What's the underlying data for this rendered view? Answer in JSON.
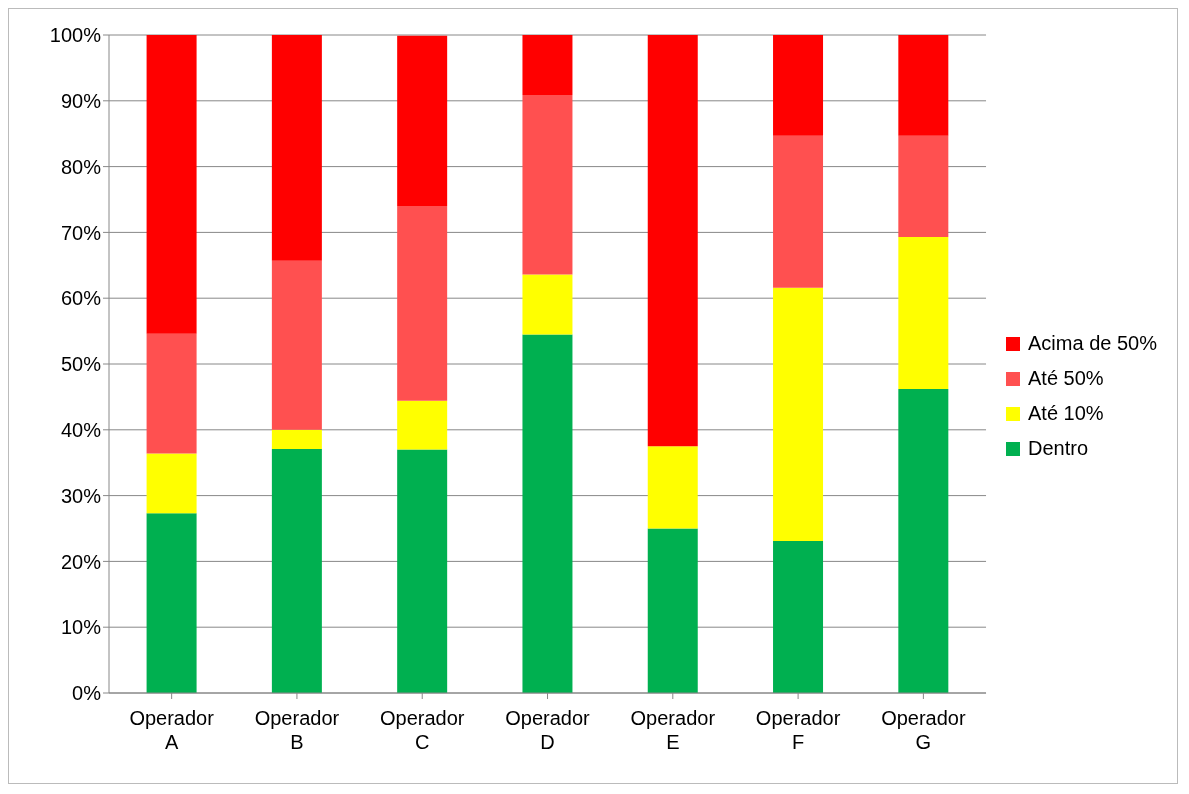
{
  "chart_data": {
    "type": "bar",
    "stacked": true,
    "categories": [
      "Operador A",
      "Operador B",
      "Operador C",
      "Operador D",
      "Operador E",
      "Operador F",
      "Operador G"
    ],
    "series": [
      {
        "name": "Dentro",
        "color": "#00b050",
        "values": [
          27.3,
          37.1,
          37.0,
          54.5,
          25.0,
          23.1,
          46.2
        ]
      },
      {
        "name": "Até 10%",
        "color": "#ffff00",
        "values": [
          9.1,
          2.9,
          7.4,
          9.1,
          12.5,
          38.5,
          23.1
        ]
      },
      {
        "name": "Até 50%",
        "color": "#ff5050",
        "values": [
          18.2,
          25.7,
          29.6,
          27.3,
          0,
          23.1,
          15.4
        ]
      },
      {
        "name": "Acima de 50%",
        "color": "#ff0000",
        "values": [
          45.4,
          34.3,
          25.9,
          9.1,
          62.5,
          15.3,
          15.3
        ]
      }
    ],
    "ylim": [
      0,
      100
    ],
    "yticks": [
      {
        "value": 0,
        "label": "0%"
      },
      {
        "value": 10,
        "label": "10%"
      },
      {
        "value": 20,
        "label": "20%"
      },
      {
        "value": 30,
        "label": "30%"
      },
      {
        "value": 40,
        "label": "40%"
      },
      {
        "value": 50,
        "label": "50%"
      },
      {
        "value": 60,
        "label": "60%"
      },
      {
        "value": 70,
        "label": "70%"
      },
      {
        "value": 80,
        "label": "80%"
      },
      {
        "value": 90,
        "label": "90%"
      },
      {
        "value": 100,
        "label": "100%"
      }
    ],
    "grid": "y",
    "legend": "right"
  }
}
